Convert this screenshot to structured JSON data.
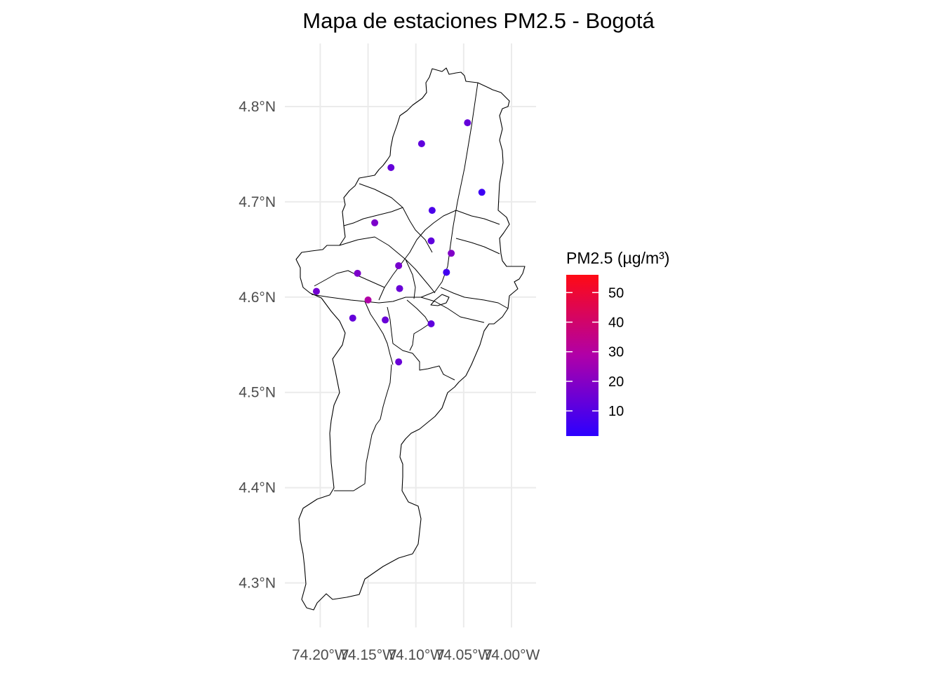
{
  "title": "Mapa de estaciones PM2.5 - Bogotá",
  "chart_data": {
    "type": "scatter",
    "title": "Mapa de estaciones PM2.5 - Bogotá",
    "xlabel": "",
    "ylabel": "",
    "x_ticks": [
      {
        "value": -74.2,
        "label": "74.20°W"
      },
      {
        "value": -74.15,
        "label": "74.15°W"
      },
      {
        "value": -74.1,
        "label": "74.10°W"
      },
      {
        "value": -74.05,
        "label": "74.05°W"
      },
      {
        "value": -74.0,
        "label": "74.00°W"
      }
    ],
    "y_ticks": [
      {
        "value": 4.3,
        "label": "4.3°N"
      },
      {
        "value": 4.4,
        "label": "4.4°N"
      },
      {
        "value": 4.5,
        "label": "4.5°N"
      },
      {
        "value": 4.6,
        "label": "4.6°N"
      },
      {
        "value": 4.7,
        "label": "4.7°N"
      },
      {
        "value": 4.8,
        "label": "4.8°N"
      }
    ],
    "xlim": [
      -74.23,
      -73.97
    ],
    "ylim": [
      4.26,
      4.85
    ],
    "grid": true,
    "legend": {
      "title": "PM2.5 (µg/m³)",
      "position": "right",
      "min": 1.5,
      "max": 56,
      "low_color": "#2c00ff",
      "high_color": "#ff0a14",
      "ticks": [
        10,
        20,
        30,
        40,
        50
      ]
    },
    "stations": [
      {
        "lon": -74.046,
        "lat": 4.783,
        "pm25": 13
      },
      {
        "lon": -74.094,
        "lat": 4.761,
        "pm25": 12
      },
      {
        "lon": -74.126,
        "lat": 4.736,
        "pm25": 13
      },
      {
        "lon": -74.031,
        "lat": 4.71,
        "pm25": 5
      },
      {
        "lon": -74.083,
        "lat": 4.691,
        "pm25": 8
      },
      {
        "lon": -74.143,
        "lat": 4.678,
        "pm25": 18
      },
      {
        "lon": -74.084,
        "lat": 4.659,
        "pm25": 12
      },
      {
        "lon": -74.063,
        "lat": 4.646,
        "pm25": 19
      },
      {
        "lon": -74.118,
        "lat": 4.633,
        "pm25": 17
      },
      {
        "lon": -74.068,
        "lat": 4.626,
        "pm25": 6
      },
      {
        "lon": -74.161,
        "lat": 4.625,
        "pm25": 18
      },
      {
        "lon": -74.117,
        "lat": 4.609,
        "pm25": 14
      },
      {
        "lon": -74.204,
        "lat": 4.606,
        "pm25": 16
      },
      {
        "lon": -74.15,
        "lat": 4.597,
        "pm25": 29
      },
      {
        "lon": -74.166,
        "lat": 4.578,
        "pm25": 13
      },
      {
        "lon": -74.132,
        "lat": 4.576,
        "pm25": 14
      },
      {
        "lon": -74.084,
        "lat": 4.572,
        "pm25": 12
      },
      {
        "lon": -74.118,
        "lat": 4.532,
        "pm25": 14
      }
    ]
  }
}
